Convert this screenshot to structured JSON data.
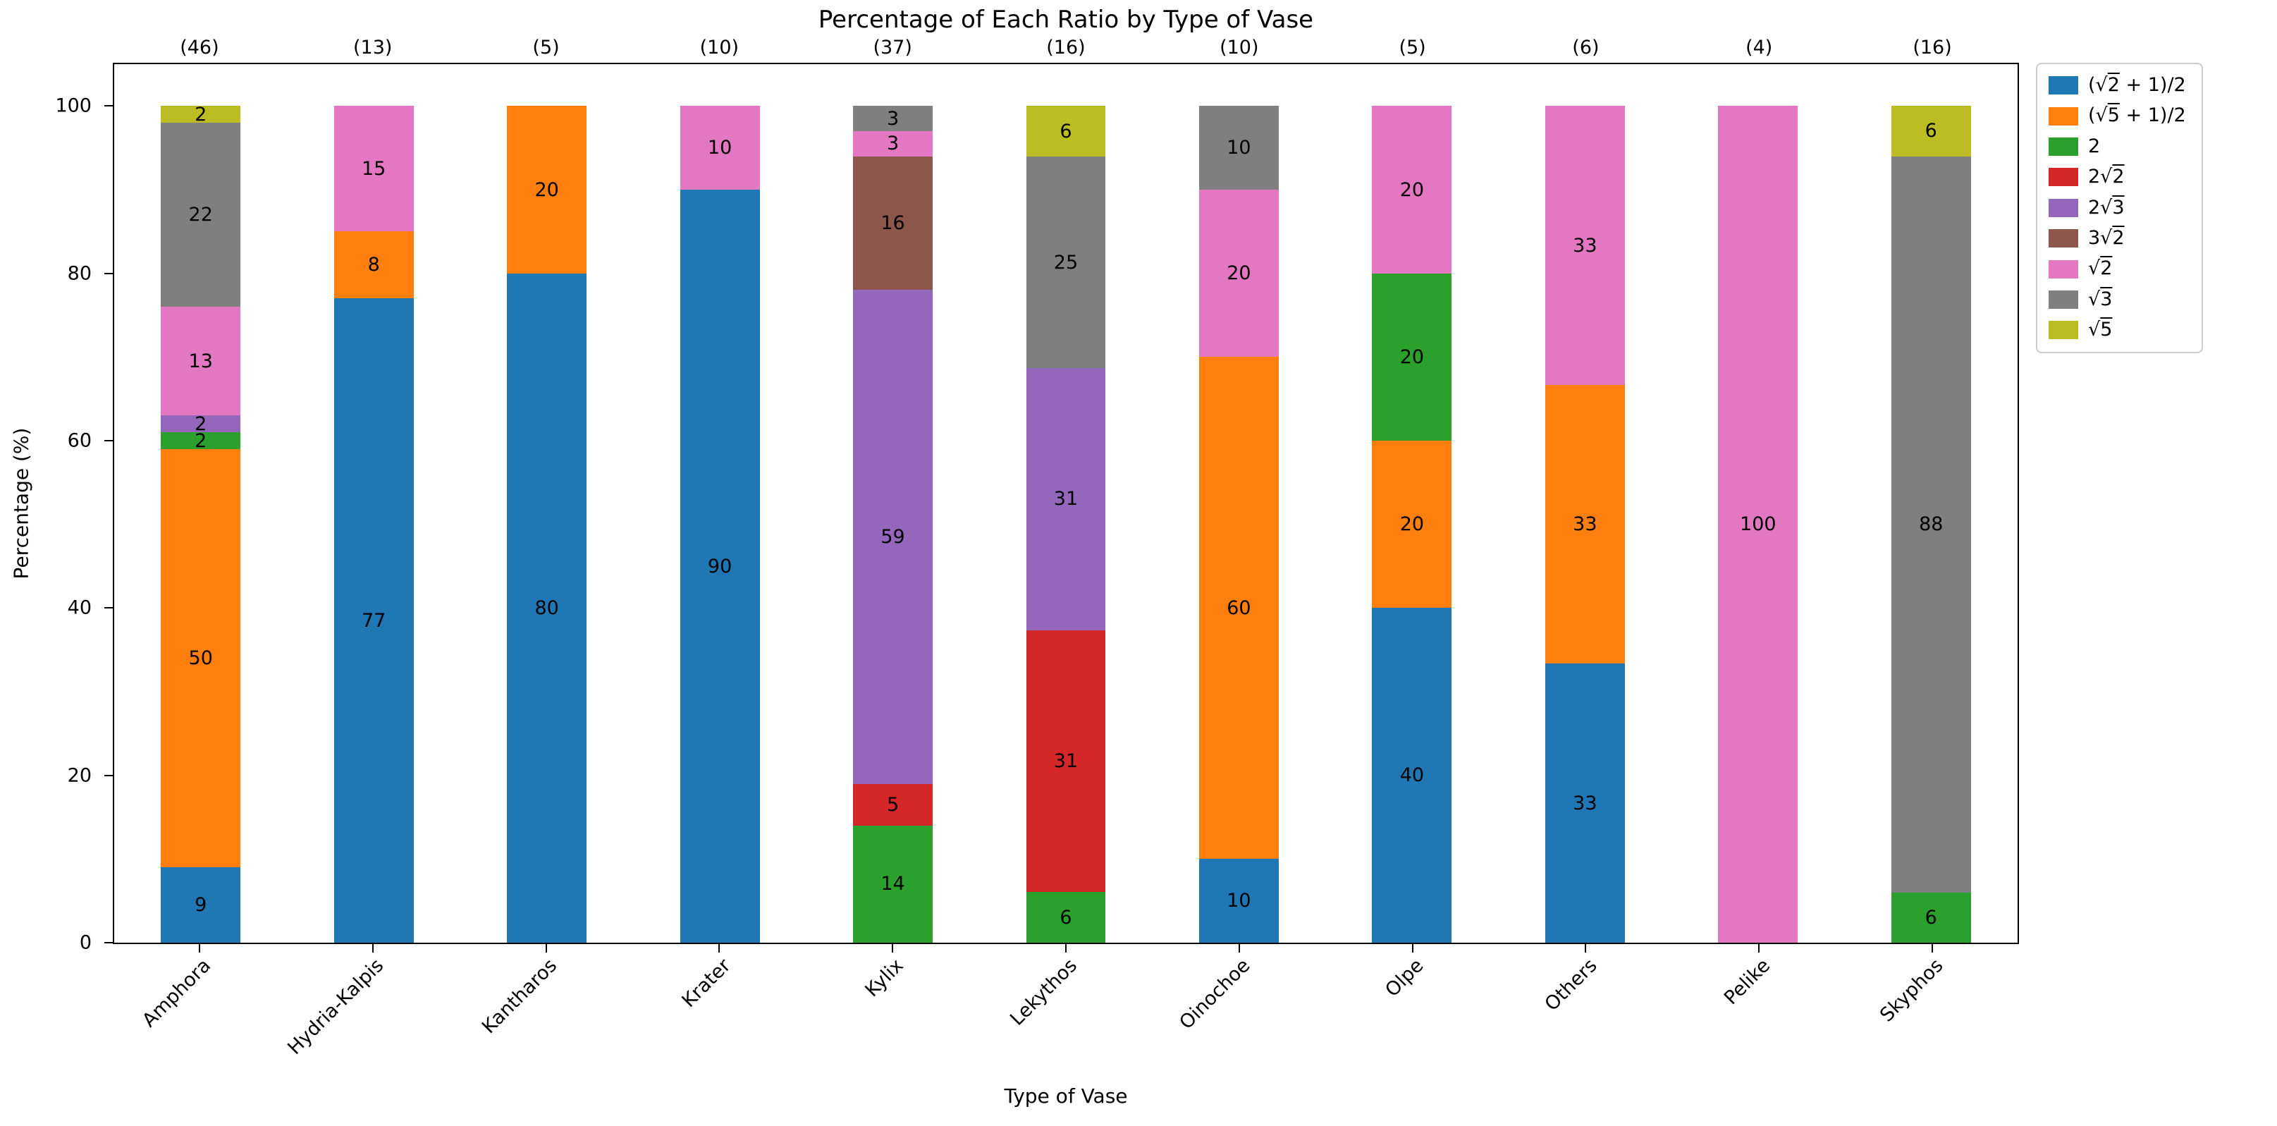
{
  "chart_data": {
    "type": "bar",
    "stacked": true,
    "title": "Percentage of Each Ratio by Type of Vase",
    "xlabel": "Type of Vase",
    "ylabel": "Percentage (%)",
    "ylim": [
      0,
      100
    ],
    "yticks": [
      0,
      20,
      40,
      60,
      80,
      100
    ],
    "grid": false,
    "legend_position": "outside upper right",
    "categories": [
      "Amphora",
      "Hydria-Kalpis",
      "Kantharos",
      "Krater",
      "Kylix",
      "Lekythos",
      "Oinochoe",
      "Olpe",
      "Others",
      "Pelike",
      "Skyphos"
    ],
    "bar_totals_display": [
      "(46)",
      "(13)",
      "(5)",
      "(10)",
      "(37)",
      "(16)",
      "(10)",
      "(5)",
      "(6)",
      "(4)",
      "(16)"
    ],
    "series": [
      {
        "name": "(√2 + 1)/2",
        "color": "#1f77b4",
        "values": [
          9,
          77,
          80,
          90,
          0,
          0,
          10,
          40,
          33,
          0,
          0
        ]
      },
      {
        "name": "(√5 + 1)/2",
        "color": "#ff7f0e",
        "values": [
          50,
          8,
          20,
          0,
          0,
          0,
          60,
          20,
          33,
          0,
          0
        ]
      },
      {
        "name": "2",
        "color": "#2ca02c",
        "values": [
          2,
          0,
          0,
          0,
          14,
          6,
          0,
          20,
          0,
          0,
          6
        ]
      },
      {
        "name": "2√2",
        "color": "#d62728",
        "values": [
          0,
          0,
          0,
          0,
          5,
          31,
          0,
          0,
          0,
          0,
          0
        ]
      },
      {
        "name": "2√3",
        "color": "#9467bd",
        "values": [
          2,
          0,
          0,
          0,
          59,
          31,
          0,
          0,
          0,
          0,
          0
        ]
      },
      {
        "name": "3√2",
        "color": "#8c564b",
        "values": [
          0,
          0,
          0,
          0,
          16,
          0,
          0,
          0,
          0,
          0,
          0
        ]
      },
      {
        "name": "√2",
        "color": "#e377c2",
        "values": [
          13,
          15,
          0,
          10,
          3,
          0,
          20,
          20,
          33,
          100,
          0
        ]
      },
      {
        "name": "√3",
        "color": "#7f7f7f",
        "values": [
          22,
          0,
          0,
          0,
          3,
          25,
          10,
          0,
          0,
          0,
          88
        ]
      },
      {
        "name": "√5",
        "color": "#bcbd22",
        "values": [
          2,
          0,
          0,
          0,
          0,
          6,
          0,
          0,
          0,
          0,
          6
        ]
      }
    ]
  }
}
